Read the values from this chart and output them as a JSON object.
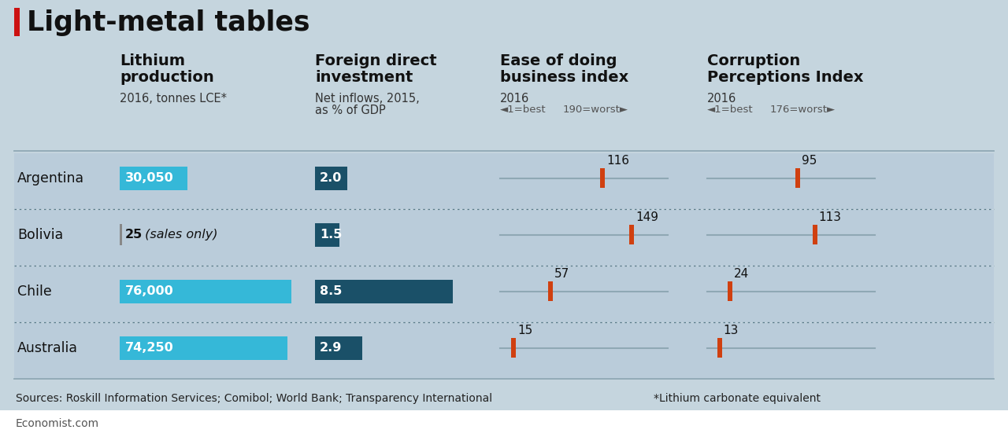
{
  "title": "Light-metal tables",
  "bg_color": "#c5d5de",
  "row_bg_color": "#baccda",
  "countries": [
    "Argentina",
    "Bolivia",
    "Chile",
    "Australia"
  ],
  "lithium": {
    "values": [
      30050,
      25,
      76000,
      74250
    ],
    "labels": [
      "30,050",
      "25",
      "76,000",
      "74,250"
    ],
    "bolivia_extra": " (sales only)",
    "max_val": 76000,
    "bar_color": "#35b8d8",
    "col_title_line1": "Lithium",
    "col_title_line2": "production",
    "col_subtitle": "2016, tonnes LCE*"
  },
  "fdi": {
    "values": [
      2.0,
      1.5,
      8.5,
      2.9
    ],
    "labels": [
      "2.0",
      "1.5",
      "8.5",
      "2.9"
    ],
    "max_val": 8.5,
    "bar_color": "#1a5068",
    "col_title_line1": "Foreign direct",
    "col_title_line2": "investment",
    "col_subtitle_line1": "Net inflows, 2015,",
    "col_subtitle_line2": "as % of GDP"
  },
  "ease": {
    "values": [
      116,
      149,
      57,
      15
    ],
    "labels": [
      "116",
      "149",
      "57",
      "15"
    ],
    "max_val": 190,
    "marker_color": "#d04010",
    "line_color": "#8fa8b4",
    "col_title_line1": "Ease of doing",
    "col_title_line2": "business index",
    "col_subtitle": "2016",
    "range_left": "◄1=best",
    "range_right": "190=worst►"
  },
  "corruption": {
    "values": [
      95,
      113,
      24,
      13
    ],
    "labels": [
      "95",
      "113",
      "24",
      "13"
    ],
    "max_val": 176,
    "marker_color": "#d04010",
    "line_color": "#8fa8b4",
    "col_title_line1": "Corruption",
    "col_title_line2": "Perceptions Index",
    "col_subtitle": "2016",
    "range_left": "◄1=best",
    "range_right": "176=worst►"
  },
  "source_text": "Sources: Roskill Information Services; Comibol; World Bank; Transparency International",
  "footnote_text": "*Lithium carbonate equivalent",
  "economist_text": "Economist.com",
  "title_bar_color": "#cc1111",
  "separator_color": "#8fa8b4",
  "dot_color": "#5a7a88"
}
